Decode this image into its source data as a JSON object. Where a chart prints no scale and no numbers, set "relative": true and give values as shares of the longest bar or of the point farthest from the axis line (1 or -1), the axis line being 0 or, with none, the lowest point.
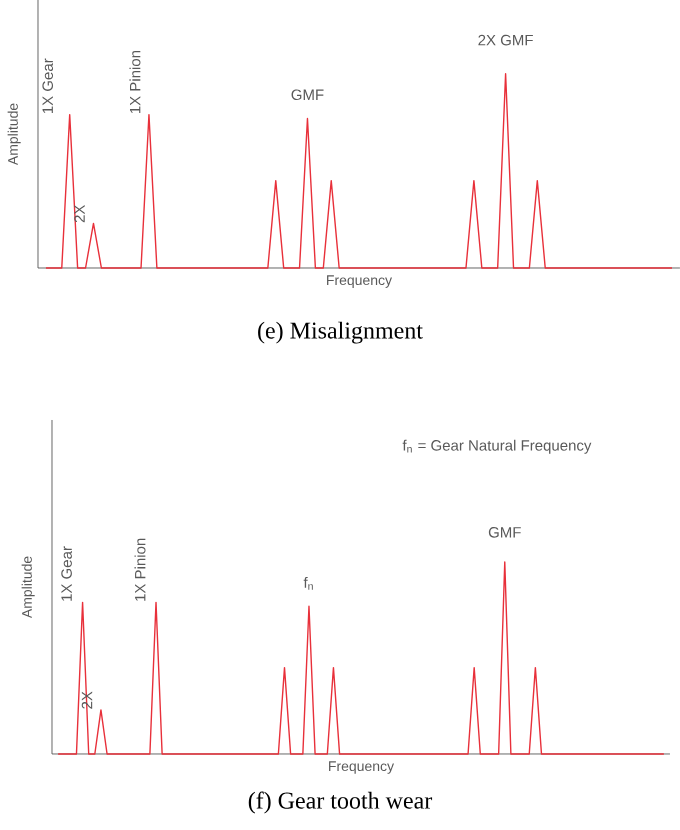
{
  "chart_data": [
    {
      "type": "line",
      "relative": true,
      "title": "(e)  Misalignment",
      "xlabel": "Frequency",
      "ylabel": "Amplitude",
      "categories": [
        null,
        null,
        null,
        null,
        null,
        null,
        null,
        null,
        null,
        null,
        null,
        null,
        null,
        null,
        null,
        null,
        null,
        null,
        null,
        null,
        null,
        null,
        null,
        null,
        null,
        null,
        null,
        null,
        null,
        null,
        null,
        null,
        null,
        null,
        null,
        null,
        null,
        null,
        null,
        null,
        null,
        null,
        null,
        null,
        null,
        null,
        null,
        null,
        null,
        null,
        null,
        null,
        null,
        null,
        null,
        null,
        null,
        null,
        null,
        null,
        null,
        null,
        null,
        null,
        null,
        null,
        null,
        null,
        null,
        null,
        null,
        null,
        null,
        null,
        null,
        null,
        null,
        null,
        null,
        null
      ],
      "series": [
        {
          "color": "#e8303a",
          "values": [
            0,
            0,
            0,
            0.79,
            0,
            0,
            0.23,
            0,
            0,
            0,
            0,
            0,
            0,
            0.79,
            0,
            0,
            0,
            0,
            0,
            0,
            0,
            0,
            0,
            0,
            0,
            0,
            0,
            0,
            0,
            0.45,
            0,
            0,
            0,
            0.77,
            0,
            0,
            0.45,
            0,
            0,
            0,
            0,
            0,
            0,
            0,
            0,
            0,
            0,
            0,
            0,
            0,
            0,
            0,
            0,
            0,
            0.45,
            0,
            0,
            0,
            1,
            0,
            0,
            0,
            0.45,
            0,
            0,
            0,
            0,
            0,
            0,
            0,
            0,
            0,
            0,
            0,
            0,
            0,
            0,
            0,
            0,
            0
          ]
        }
      ],
      "annotations": [
        "1X Gear",
        "2X",
        "1X Pinion",
        "GMF",
        "2X GMF"
      ]
    },
    {
      "type": "line",
      "relative": true,
      "title": "(f)  Gear tooth wear",
      "xlabel": "Frequency",
      "ylabel": "Amplitude",
      "categories": [
        null,
        null,
        null,
        null,
        null,
        null,
        null,
        null,
        null,
        null,
        null,
        null,
        null,
        null,
        null,
        null,
        null,
        null,
        null,
        null,
        null,
        null,
        null,
        null,
        null,
        null,
        null,
        null,
        null,
        null,
        null,
        null,
        null,
        null,
        null,
        null,
        null,
        null,
        null,
        null,
        null,
        null,
        null,
        null,
        null,
        null,
        null,
        null,
        null,
        null,
        null,
        null,
        null,
        null,
        null,
        null,
        null,
        null,
        null,
        null,
        null,
        null,
        null,
        null,
        null,
        null,
        null,
        null,
        null,
        null,
        null,
        null,
        null,
        null,
        null,
        null,
        null,
        null,
        null,
        null,
        null,
        null,
        null,
        null,
        null,
        null,
        null,
        null,
        null,
        null,
        null,
        null,
        null,
        null,
        null,
        null,
        null,
        null,
        null,
        null
      ],
      "series": [
        {
          "color": "#e8303a",
          "values": [
            0,
            0,
            0,
            0,
            0.79,
            0,
            0,
            0.23,
            0,
            0,
            0,
            0,
            0,
            0,
            0,
            0,
            0.79,
            0,
            0,
            0,
            0,
            0,
            0,
            0,
            0,
            0,
            0,
            0,
            0,
            0,
            0,
            0,
            0,
            0,
            0,
            0,
            0,
            0.45,
            0,
            0,
            0,
            0.77,
            0,
            0,
            0,
            0.45,
            0,
            0,
            0,
            0,
            0,
            0,
            0,
            0,
            0,
            0,
            0,
            0,
            0,
            0,
            0,
            0,
            0,
            0,
            0,
            0,
            0,
            0,
            0.45,
            0,
            0,
            0,
            0,
            1,
            0,
            0,
            0,
            0,
            0.45,
            0,
            0,
            0,
            0,
            0,
            0,
            0,
            0,
            0,
            0,
            0,
            0,
            0,
            0,
            0,
            0,
            0,
            0,
            0,
            0,
            0
          ]
        }
      ],
      "annotations": [
        "f$_{n}$ = Gear Natural Frequency",
        "1X Gear",
        "2X",
        "1X Pinion",
        "f$_{n}$",
        "GMF"
      ]
    }
  ]
}
